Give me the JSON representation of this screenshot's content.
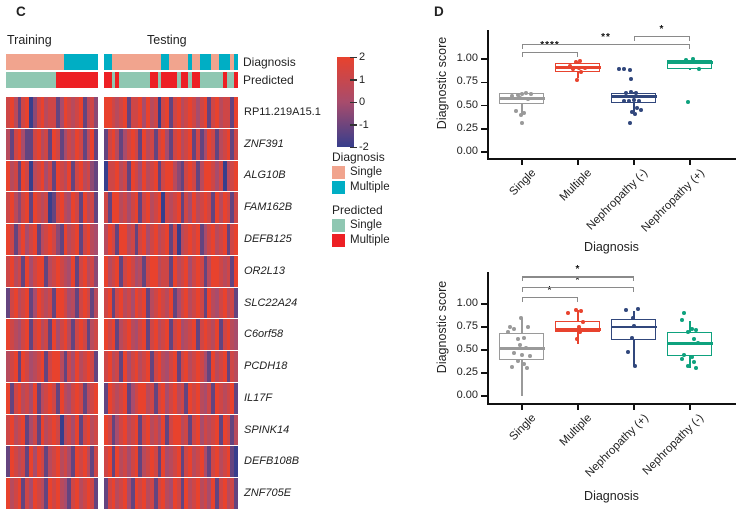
{
  "panel_c": {
    "label": "C",
    "training_label": "Training",
    "testing_label": "Testing",
    "annotation_row_labels": [
      "Diagnosis",
      "Predicted"
    ],
    "colorbar": {
      "tick_labels": [
        "2",
        "1",
        "0",
        "-1",
        "-2"
      ],
      "top_color": "#e8422d",
      "mid_color": "#a84c6c",
      "bottom_color": "#373e8c"
    },
    "legend": {
      "diagnosis_title": "Diagnosis",
      "diagnosis_items": [
        {
          "label": "Single",
          "color": "#f1a48e"
        },
        {
          "label": "Multiple",
          "color": "#00aec4"
        }
      ],
      "predicted_title": "Predicted",
      "predicted_items": [
        {
          "label": "Single",
          "color": "#8fc7b2"
        },
        {
          "label": "Multiple",
          "color": "#ed2024"
        }
      ]
    }
  },
  "panel_d": {
    "label": "D"
  },
  "chart_data": [
    {
      "type": "heatmap",
      "blocks": [
        "Training",
        "Testing"
      ],
      "value_range": [
        -2,
        2
      ],
      "level_key": {
        "R": 2,
        "r": 1.2,
        "o": 0.5,
        "z": 0,
        "p": -0.5,
        "b": -1.2,
        "B": -2
      },
      "annotation_colors": {
        "diagnosis": {
          "S": "#f1a48e",
          "M": "#00aec4"
        },
        "predicted": {
          "s": "#8fc7b2",
          "m": "#ed2024",
          "S": "#8fc7b2",
          "M": "#ed2024"
        }
      },
      "annotation": {
        "training": {
          "diagnosis": "SSSSSSSSSSSSSSSMMMMMMMMM",
          "predicted": "sssssssssssssmmmmmmmmmmm"
        },
        "testing": {
          "diagnosis": "MMSSSSSSSSSSSSSMMSSSSSMSSMMMSSMMMSM",
          "predicted": "MMsMssssssssMMsMMMMsMMsMMssssssMssM"
        }
      },
      "rows": [
        {
          "gene": "RP11.219A15.1",
          "train": "rRobrRBprRorrbzRrorRborp",
          "test": "RRrorRbrrRzRorBrRbrRorRrzrRbrRorrbR"
        },
        {
          "gene": "ZNF391",
          "train": "obrRzbbrRorbRrbzroRrboRb",
          "test": "brRobzrRrbRorbrRzbrRorRbrbzRrborRbr"
        },
        {
          "gene": "ALG10B",
          "train": "RorbRrBorRzrbRroRbrRorpb",
          "test": "BrrRorbRrzRorRbrRRopbrRrboRRrzrBorR"
        },
        {
          "gene": "FAM162B",
          "train": "rRoprRbRrorBbrRozRrbRorb",
          "test": "rbRRorzrRbrRorRBrorRbrzRorRrbRoRrbr"
        },
        {
          "gene": "DEFB125",
          "train": "RrboRzrRborRrpbRorRbrRoz",
          "test": "oRrbRRorbrRzrRorRbrBorRrRbzrRorRbrR"
        },
        {
          "gene": "OR2L13",
          "train": "rRorbRzrRRborRrozRbrRorp",
          "test": "RorRbrRrzobrRRorrbRorRzrRrboRRrorbR"
        },
        {
          "gene": "SLC22A24",
          "train": "brRorRbzRrorbRRrzobrRrbo",
          "test": "rRbrRorzRrRborRroRbzrRorRrbRozrRorb"
        },
        {
          "gene": "C6orf58",
          "train": "RrozrRbrRorbRzrRobrRrbor",
          "test": "RrRborRozrRbrRorRbrRzorRbrRroRbrRoz"
        },
        {
          "gene": "PCDH18",
          "train": "orRbRrzorRbrRRobrzRorRrb",
          "test": "rRorbRzrRorRbrRozrRbrRorRrzbRorRbro"
        },
        {
          "gene": "IL17F",
          "train": "RbrRorzRborRrbRozrRrborR",
          "test": "bRrorRbzrRRorbrRzrRorbRrRozrbRrorRb"
        },
        {
          "gene": "SPINK14",
          "train": "rRorRbzrbRorRrBorzRbrRor",
          "test": "RrbzrRorRbrRorzRbrRRorbrRzrorRbRrbo"
        },
        {
          "gene": "DEFB108B",
          "train": "bRrorbRzRrborRorzbRrRobr",
          "test": "rRbRorzrRborRrbRzorRbrRorRzbrRorRbB"
        },
        {
          "gene": "ZNF705E",
          "train": "RorRbrzRrobRrRozbrRorRrb",
          "test": "brRorRzbRrRorbrRozRrbRorRorzRbrRorb"
        }
      ]
    },
    {
      "type": "box",
      "ylabel": "Diagnostic score",
      "xlabel": "Diagnosis",
      "ytick_labels": [
        "1.00",
        "0.75",
        "0.50",
        "0.25",
        "0.00"
      ],
      "ylim": [
        0,
        1.35
      ],
      "groups": [
        {
          "label": "Single",
          "color": "#9a9a9a",
          "q1": 0.5,
          "median": 0.575,
          "q3": 0.63,
          "whisker_low": 0.4,
          "whisker_high": 0.63,
          "points": [
            [
              -10,
              0.6
            ],
            [
              -4,
              0.61
            ],
            [
              0,
              0.62
            ],
            [
              4,
              0.63
            ],
            [
              9,
              0.62
            ],
            [
              -2,
              0.58
            ],
            [
              6,
              0.57
            ],
            [
              -6,
              0.44
            ],
            [
              2,
              0.42
            ],
            [
              -1,
              0.4
            ],
            [
              0,
              0.31
            ]
          ]
        },
        {
          "label": "Multiple",
          "color": "#e8432e",
          "q1": 0.85,
          "median": 0.91,
          "q3": 0.96,
          "whisker_low": 0.8,
          "whisker_high": 0.97,
          "points": [
            [
              -8,
              0.93
            ],
            [
              -2,
              0.97
            ],
            [
              2,
              0.98
            ],
            [
              -5,
              0.89
            ],
            [
              1,
              0.9
            ],
            [
              7,
              0.9
            ],
            [
              3,
              0.86
            ],
            [
              -1,
              0.77
            ]
          ]
        },
        {
          "label": "Nephropathy (-)",
          "color": "#31477c",
          "q1": 0.52,
          "median": 0.6,
          "q3": 0.635,
          "whisker_low": 0.43,
          "whisker_high": 0.64,
          "points": [
            [
              -15,
              0.89
            ],
            [
              -10,
              0.89
            ],
            [
              -4,
              0.88
            ],
            [
              -3,
              0.78
            ],
            [
              -8,
              0.63
            ],
            [
              -3,
              0.64
            ],
            [
              2,
              0.63
            ],
            [
              -10,
              0.55
            ],
            [
              -5,
              0.55
            ],
            [
              0,
              0.56
            ],
            [
              5,
              0.55
            ],
            [
              3,
              0.47
            ],
            [
              7,
              0.45
            ],
            [
              -2,
              0.43
            ],
            [
              1,
              0.41
            ],
            [
              -4,
              0.31
            ]
          ]
        },
        {
          "label": "Nephropathy (+)",
          "color": "#0ea27e",
          "q1": 0.88,
          "median": 0.965,
          "q3": 0.99,
          "whisker_low": 0.88,
          "whisker_high": 0.99,
          "points": [
            [
              -4,
              0.99
            ],
            [
              3,
              1.0
            ],
            [
              9,
              0.89
            ],
            [
              -2,
              0.54
            ]
          ]
        }
      ],
      "significance": [
        {
          "g1": 0,
          "g2": 1,
          "label": "****",
          "height": 1.08
        },
        {
          "g1": 0,
          "g2": 3,
          "label": "**",
          "height": 1.16
        },
        {
          "g1": 2,
          "g2": 3,
          "label": "*",
          "height": 1.25
        }
      ]
    },
    {
      "type": "box",
      "ylabel": "Diagnostic score",
      "xlabel": "Diagnosis",
      "ytick_labels": [
        "1.00",
        "0.75",
        "0.50",
        "0.25",
        "0.00"
      ],
      "ylim": [
        0,
        1.35
      ],
      "groups": [
        {
          "label": "Single",
          "color": "#9a9a9a",
          "q1": 0.38,
          "median": 0.52,
          "q3": 0.68,
          "whisker_low": 0.005,
          "whisker_high": 0.85,
          "points": [
            [
              -12,
              0.75
            ],
            [
              -8,
              0.73
            ],
            [
              6,
              0.75
            ],
            [
              -4,
              0.62
            ],
            [
              2,
              0.63
            ],
            [
              -14,
              0.7
            ],
            [
              -2,
              0.55
            ],
            [
              4,
              0.52
            ],
            [
              -8,
              0.47
            ],
            [
              0,
              0.45
            ],
            [
              8,
              0.44
            ],
            [
              -4,
              0.38
            ],
            [
              2,
              0.35
            ],
            [
              -10,
              0.31
            ],
            [
              5,
              0.3
            ],
            [
              -1,
              0.85
            ]
          ]
        },
        {
          "label": "Multiple",
          "color": "#e8432e",
          "q1": 0.68,
          "median": 0.725,
          "q3": 0.82,
          "whisker_low": 0.57,
          "whisker_high": 0.93,
          "points": [
            [
              -10,
              0.9
            ],
            [
              -2,
              0.93
            ],
            [
              3,
              0.92
            ],
            [
              5,
              0.8
            ],
            [
              1,
              0.75
            ],
            [
              -3,
              0.72
            ],
            [
              2,
              0.7
            ],
            [
              -1,
              0.62
            ]
          ]
        },
        {
          "label": "Nephropathy (+)",
          "color": "#31477c",
          "q1": 0.6,
          "median": 0.75,
          "q3": 0.84,
          "whisker_low": 0.33,
          "whisker_high": 0.92,
          "points": [
            [
              -8,
              0.93
            ],
            [
              4,
              0.95
            ],
            [
              -1,
              0.85
            ],
            [
              0,
              0.76
            ],
            [
              -2,
              0.63
            ],
            [
              -6,
              0.48
            ],
            [
              1,
              0.33
            ]
          ]
        },
        {
          "label": "Nephropathy (-)",
          "color": "#0ea27e",
          "q1": 0.42,
          "median": 0.57,
          "q3": 0.7,
          "whisker_low": 0.3,
          "whisker_high": 0.82,
          "points": [
            [
              -6,
              0.9
            ],
            [
              -8,
              0.83
            ],
            [
              2,
              0.73
            ],
            [
              6,
              0.72
            ],
            [
              -2,
              0.7
            ],
            [
              4,
              0.62
            ],
            [
              8,
              0.58
            ],
            [
              -6,
              0.45
            ],
            [
              2,
              0.42
            ],
            [
              -8,
              0.4
            ],
            [
              4,
              0.37
            ],
            [
              -2,
              0.33
            ],
            [
              6,
              0.3
            ]
          ]
        }
      ],
      "significance": [
        {
          "g1": 0,
          "g2": 1,
          "label": "*",
          "height": 1.08
        },
        {
          "g1": 0,
          "g2": 2,
          "label": "*",
          "height": 1.19
        },
        {
          "g1": 0,
          "g2": 2,
          "label": "*",
          "height": 1.3
        }
      ]
    }
  ]
}
